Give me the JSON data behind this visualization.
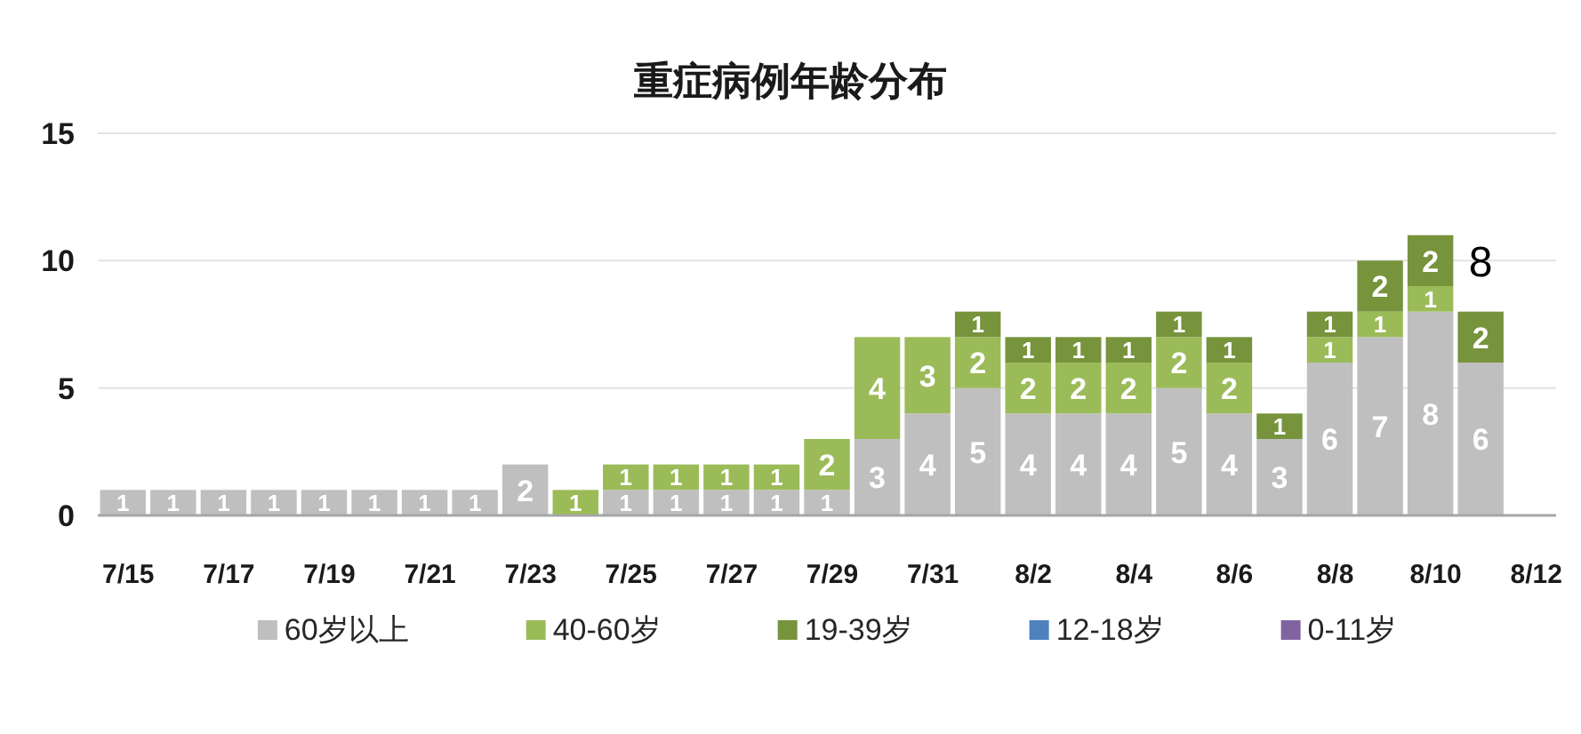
{
  "chart_data": {
    "type": "bar",
    "title": "重症病例年龄分布",
    "categories": [
      "7/15",
      null,
      "7/17",
      null,
      "7/19",
      null,
      "7/21",
      null,
      "7/23",
      null,
      "7/25",
      null,
      "7/27",
      null,
      "7/29",
      null,
      "7/31",
      null,
      "8/2",
      null,
      "8/4",
      null,
      "8/6",
      null,
      "8/8",
      null,
      "8/10",
      null,
      "8/12"
    ],
    "series": [
      {
        "name": "60岁以上",
        "color": "#bfbfbf",
        "values": [
          1,
          1,
          1,
          1,
          1,
          1,
          1,
          1,
          2,
          null,
          1,
          1,
          1,
          1,
          1,
          3,
          4,
          5,
          4,
          4,
          4,
          5,
          4,
          3,
          6,
          7,
          8,
          6,
          null
        ]
      },
      {
        "name": "40-60岁",
        "color": "#9bbb59",
        "values": [
          null,
          null,
          null,
          null,
          null,
          null,
          null,
          null,
          null,
          1,
          1,
          1,
          1,
          1,
          2,
          4,
          3,
          2,
          2,
          2,
          2,
          2,
          2,
          null,
          1,
          1,
          1,
          null,
          null
        ]
      },
      {
        "name": "19-39岁",
        "color": "#77933c",
        "values": [
          null,
          null,
          null,
          null,
          null,
          null,
          null,
          null,
          null,
          null,
          null,
          null,
          null,
          null,
          null,
          null,
          null,
          1,
          1,
          1,
          1,
          1,
          1,
          1,
          1,
          2,
          2,
          2,
          null
        ]
      },
      {
        "name": "12-18岁",
        "color": "#4f81bd",
        "values": [
          null,
          null,
          null,
          null,
          null,
          null,
          null,
          null,
          null,
          null,
          null,
          null,
          null,
          null,
          null,
          null,
          null,
          null,
          null,
          null,
          null,
          null,
          null,
          null,
          null,
          null,
          null,
          null,
          null
        ]
      },
      {
        "name": "0-11岁",
        "color": "#8064a2",
        "values": [
          null,
          null,
          null,
          null,
          null,
          null,
          null,
          null,
          null,
          null,
          null,
          null,
          null,
          null,
          null,
          null,
          null,
          null,
          null,
          null,
          null,
          null,
          null,
          null,
          null,
          null,
          null,
          null,
          null
        ]
      }
    ],
    "stacked": true,
    "data_labels": true,
    "totals": [
      null,
      null,
      null,
      null,
      null,
      null,
      null,
      null,
      null,
      null,
      null,
      null,
      null,
      null,
      null,
      null,
      null,
      null,
      null,
      null,
      null,
      null,
      null,
      null,
      null,
      null,
      null,
      "8",
      null
    ],
    "ylim": [
      0,
      15
    ],
    "yticks": [
      0,
      5,
      10,
      15
    ],
    "grid": "y",
    "legend": "bottom"
  }
}
